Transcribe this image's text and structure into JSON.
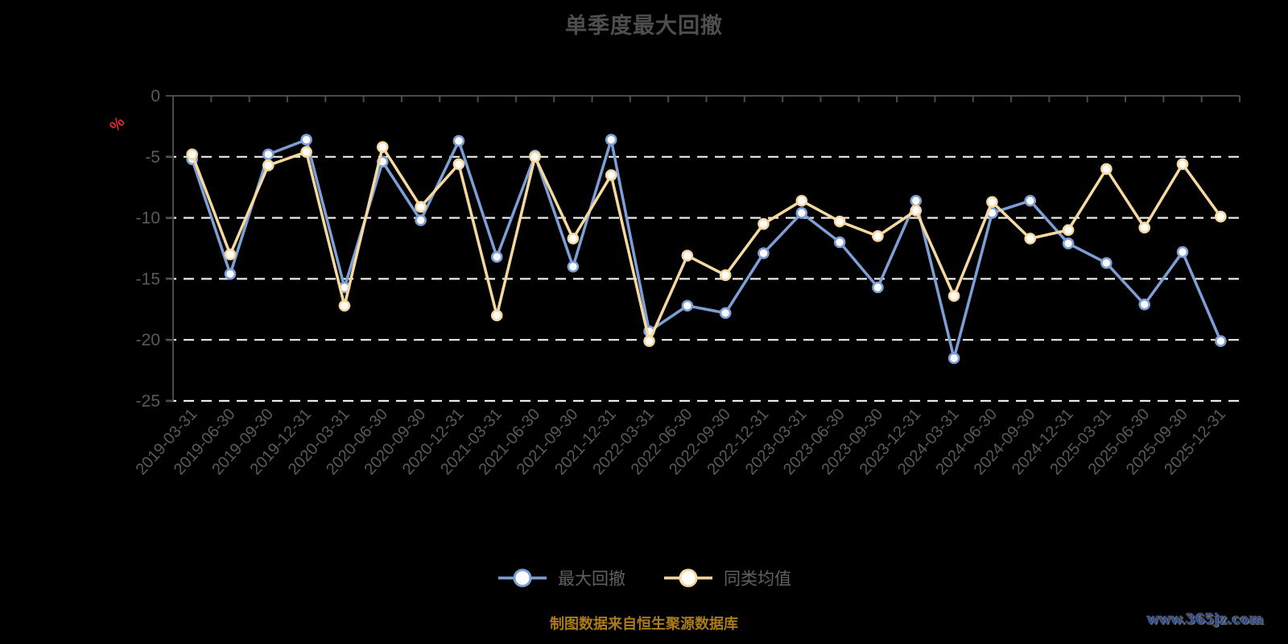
{
  "title": "单季度最大回撤",
  "y_axis_unit": "%",
  "footer": {
    "source_note": "制图数据来自恒生聚源数据库",
    "watermark": "www.365jz.com"
  },
  "colors": {
    "background": "#000000",
    "title_text": "#4e4e4e",
    "axis_line": "#4a4a4a",
    "axis_label": "#5a5a5a",
    "grid_line": "#ebebeb",
    "unit_label_red": "#d92c2c",
    "series_blue": "#7d9fd6",
    "series_yellow": "#f7d9a0",
    "marker_fill": "#ffffff",
    "legend_text": "#606060",
    "footer_gold": "#aa7a1b",
    "watermark_blue": "#2b4b93"
  },
  "chart_data": {
    "type": "line",
    "title": "单季度最大回撤",
    "xlabel": "",
    "ylabel": "%",
    "ylim": [
      -25,
      0
    ],
    "y_ticks": [
      0,
      -5,
      -10,
      -15,
      -20,
      -25
    ],
    "y_tick_labels": [
      "0",
      "-5",
      "-10",
      "-15",
      "-20",
      "-25"
    ],
    "grid": "horizontal-dashed",
    "legend_position": "bottom",
    "categories": [
      "2019-03-31",
      "2019-06-30",
      "2019-09-30",
      "2019-12-31",
      "2020-03-31",
      "2020-06-30",
      "2020-09-30",
      "2020-12-31",
      "2021-03-31",
      "2021-06-30",
      "2021-09-30",
      "2021-12-31",
      "2022-03-31",
      "2022-06-30",
      "2022-09-30",
      "2022-12-31",
      "2023-03-31",
      "2023-06-30",
      "2023-09-30",
      "2023-12-31",
      "2024-03-31",
      "2024-06-30",
      "2024-09-30",
      "2024-12-31",
      "2025-03-31",
      "2025-06-30",
      "2025-09-30",
      "2025-12-31"
    ],
    "series": [
      {
        "name": "最大回撤",
        "color": "#7d9fd6",
        "values": [
          -5.2,
          -14.6,
          -4.8,
          -3.6,
          -15.7,
          -5.4,
          -10.2,
          -3.7,
          -13.2,
          -4.9,
          -14.0,
          -3.6,
          -19.3,
          -17.2,
          -17.8,
          -12.9,
          -9.6,
          -12.0,
          -15.7,
          -8.6,
          -21.5,
          -9.6,
          -8.6,
          -12.1,
          -13.7,
          -17.1,
          -12.8,
          -20.1
        ]
      },
      {
        "name": "同类均值",
        "color": "#f7d9a0",
        "values": [
          -4.8,
          -13.0,
          -5.7,
          -4.6,
          -17.2,
          -4.2,
          -9.1,
          -5.6,
          -18.0,
          -5.0,
          -11.7,
          -6.5,
          -20.1,
          -13.1,
          -14.7,
          -10.5,
          -8.6,
          -10.3,
          -11.5,
          -9.4,
          -16.4,
          -8.7,
          -11.7,
          -11.0,
          -6.0,
          -10.8,
          -5.6,
          -9.9
        ]
      }
    ]
  }
}
